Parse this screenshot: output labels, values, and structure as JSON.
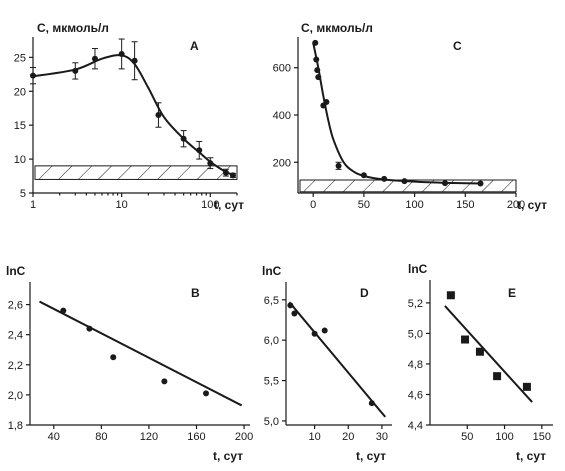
{
  "colors": {
    "ink": "#1a1a1a",
    "background": "#ffffff"
  },
  "chart_data": [
    {
      "panel": "A",
      "type": "line",
      "ylabel": "C, мкмоль/л",
      "xlabel": "t, сут",
      "xscale": "log",
      "xlim": [
        1,
        200
      ],
      "ylim": [
        5,
        28
      ],
      "xticks": [
        "1",
        "10",
        "100"
      ],
      "yticks": [
        "5",
        "10",
        "15",
        "20",
        "25"
      ],
      "grid": false,
      "points": [
        {
          "x": 1,
          "y": 22.3,
          "err": 1.2
        },
        {
          "x": 3,
          "y": 23.0,
          "err": 1.2
        },
        {
          "x": 5,
          "y": 24.8,
          "err": 1.5
        },
        {
          "x": 10,
          "y": 25.5,
          "err": 2.2
        },
        {
          "x": 14,
          "y": 24.5,
          "err": 2.8
        },
        {
          "x": 26,
          "y": 16.5,
          "err": 1.8
        },
        {
          "x": 50,
          "y": 13.0,
          "err": 1.2
        },
        {
          "x": 75,
          "y": 11.3,
          "err": 1.3
        },
        {
          "x": 100,
          "y": 9.4,
          "err": 0.8
        },
        {
          "x": 150,
          "y": 8.0,
          "err": 0.5
        },
        {
          "x": 180,
          "y": 7.6,
          "err": 0.3
        }
      ],
      "fit_curve": [
        [
          1,
          22.2
        ],
        [
          3,
          23.2
        ],
        [
          6,
          24.8
        ],
        [
          10,
          25.3
        ],
        [
          14,
          24.0
        ],
        [
          20,
          20.5
        ],
        [
          30,
          16.2
        ],
        [
          50,
          13.0
        ],
        [
          75,
          11.0
        ],
        [
          100,
          9.6
        ],
        [
          150,
          8.1
        ],
        [
          190,
          7.6
        ]
      ],
      "shaded_band": [
        7,
        9
      ]
    },
    {
      "panel": "C",
      "type": "line",
      "ylabel": "C, мкмоль/л",
      "xlabel": "t, сут",
      "xlim": [
        -15,
        200
      ],
      "ylim": [
        70,
        730
      ],
      "xticks": [
        "0",
        "50",
        "100",
        "150",
        "200"
      ],
      "yticks": [
        "200",
        "400",
        "600"
      ],
      "grid": false,
      "points": [
        {
          "x": 2,
          "y": 705
        },
        {
          "x": 3,
          "y": 635
        },
        {
          "x": 4,
          "y": 590
        },
        {
          "x": 5,
          "y": 560
        },
        {
          "x": 10,
          "y": 440
        },
        {
          "x": 13,
          "y": 455
        },
        {
          "x": 25,
          "y": 185,
          "err": 15
        },
        {
          "x": 50,
          "y": 145
        },
        {
          "x": 70,
          "y": 130
        },
        {
          "x": 90,
          "y": 120
        },
        {
          "x": 130,
          "y": 112
        },
        {
          "x": 165,
          "y": 110
        }
      ],
      "fit_curve": [
        [
          0,
          705
        ],
        [
          5,
          600
        ],
        [
          10,
          480
        ],
        [
          15,
          375
        ],
        [
          20,
          295
        ],
        [
          30,
          200
        ],
        [
          40,
          160
        ],
        [
          50,
          142
        ],
        [
          70,
          127
        ],
        [
          100,
          118
        ],
        [
          130,
          113
        ],
        [
          165,
          110
        ]
      ],
      "shaded_band": [
        75,
        125
      ]
    },
    {
      "panel": "B",
      "type": "scatter",
      "ylabel": "lnC",
      "xlabel": "t, сут",
      "xlim": [
        20,
        205
      ],
      "ylim": [
        1.8,
        2.75
      ],
      "xticks": [
        "40",
        "80",
        "120",
        "160",
        "200"
      ],
      "yticks": [
        "1,8",
        "2,0",
        "2,2",
        "2,4",
        "2,6"
      ],
      "grid": false,
      "points": [
        {
          "x": 48,
          "y": 2.56
        },
        {
          "x": 70,
          "y": 2.44
        },
        {
          "x": 90,
          "y": 2.25
        },
        {
          "x": 133,
          "y": 2.09
        },
        {
          "x": 168,
          "y": 2.01
        }
      ],
      "fit_line": [
        [
          28,
          2.62
        ],
        [
          198,
          1.93
        ]
      ]
    },
    {
      "panel": "D",
      "type": "scatter",
      "ylabel": "lnC",
      "xlabel": "t, сут",
      "xlim": [
        1.5,
        33
      ],
      "ylim": [
        4.95,
        6.72
      ],
      "xticks": [
        "10",
        "20",
        "30"
      ],
      "yticks": [
        "5,0",
        "5,5",
        "6,0",
        "6,5"
      ],
      "grid": false,
      "points": [
        {
          "x": 2.8,
          "y": 6.43
        },
        {
          "x": 4,
          "y": 6.33
        },
        {
          "x": 10,
          "y": 6.08
        },
        {
          "x": 13,
          "y": 6.12
        },
        {
          "x": 27,
          "y": 5.22
        }
      ],
      "fit_line": [
        [
          2.5,
          6.47
        ],
        [
          31,
          5.05
        ]
      ]
    },
    {
      "panel": "E",
      "type": "scatter",
      "ylabel": "lnC",
      "xlabel": "t, сут",
      "xlim": [
        0,
        165
      ],
      "ylim": [
        4.4,
        5.35
      ],
      "xticks": [
        "50",
        "100",
        "150"
      ],
      "yticks": [
        "4,4",
        "4,6",
        "4,8",
        "5,0",
        "5,2"
      ],
      "grid": false,
      "marker": "square",
      "points": [
        {
          "x": 28,
          "y": 5.25
        },
        {
          "x": 47,
          "y": 4.96
        },
        {
          "x": 67,
          "y": 4.88
        },
        {
          "x": 90,
          "y": 4.72
        },
        {
          "x": 130,
          "y": 4.65
        }
      ],
      "fit_line": [
        [
          20,
          5.18
        ],
        [
          137,
          4.55
        ]
      ]
    }
  ]
}
